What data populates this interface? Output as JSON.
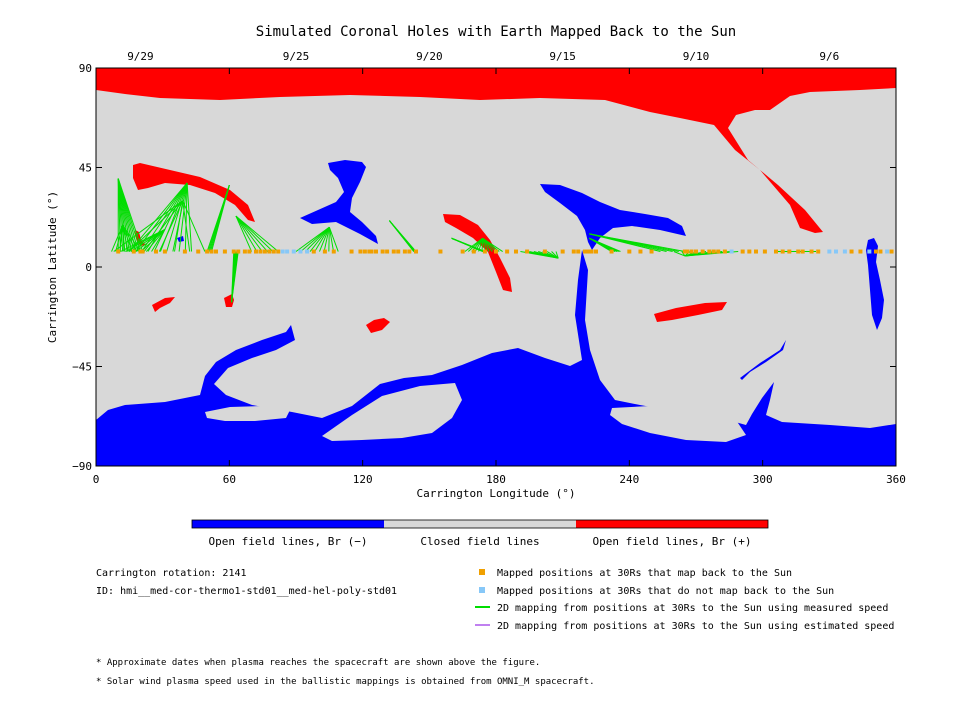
{
  "chart_data": {
    "type": "map",
    "title": "Simulated Coronal Holes with Earth Mapped Back to the Sun",
    "xlabel": "Carrington Longitude (°)",
    "ylabel": "Carrington Latitude (°)",
    "xlim": [
      0,
      360
    ],
    "ylim": [
      -90,
      90
    ],
    "x_ticks": [
      0,
      60,
      120,
      180,
      240,
      300,
      360
    ],
    "y_ticks": [
      90,
      45,
      0,
      -45,
      -90
    ],
    "y_tick_labels": [
      "90",
      "45",
      "0",
      "−45",
      "−90"
    ],
    "top_axis_dates": [
      {
        "label": "9/29",
        "lon": 20
      },
      {
        "label": "9/25",
        "lon": 90
      },
      {
        "label": "9/20",
        "lon": 150
      },
      {
        "label": "9/15",
        "lon": 210
      },
      {
        "label": "9/10",
        "lon": 270
      },
      {
        "label": "9/6",
        "lon": 330
      }
    ],
    "colors": {
      "open_negative": "#0000ff",
      "closed": "#d8d8d8",
      "open_positive": "#ff0000",
      "mapped": "#f0a000",
      "unmapped": "#87c8f8",
      "measured_speed_line": "#00dd00",
      "estimated_speed_line": "#c080f0"
    },
    "colorbar": {
      "labels": [
        "Open field lines, Br (−)",
        "Closed field lines",
        "Open field lines, Br (+)"
      ]
    },
    "earth_latitude": 7,
    "mapped_longitudes": [
      10,
      17,
      20,
      21,
      27,
      31,
      40,
      46,
      50,
      52,
      54,
      58,
      62,
      64,
      67,
      69,
      72,
      74,
      76,
      78,
      80,
      82,
      98,
      103,
      107,
      115,
      119,
      121,
      123,
      124,
      126,
      129,
      131,
      134,
      136,
      139,
      141,
      144,
      155,
      165,
      170,
      175,
      180,
      185,
      189,
      194,
      202,
      210,
      215,
      217,
      220,
      221,
      222,
      223,
      225,
      232,
      240,
      245,
      250,
      265,
      266,
      268,
      270,
      273,
      276,
      278,
      280,
      283,
      291,
      294,
      297,
      301,
      306,
      309,
      312,
      316,
      318,
      322,
      325,
      340,
      344,
      351,
      353,
      358
    ],
    "unmapped_longitudes": [
      84,
      86,
      89,
      92,
      95,
      286,
      330,
      333,
      337,
      348,
      356
    ],
    "field_line_mappings": [
      [
        10,
        40,
        10,
        21,
        9,
        12
      ],
      [
        12,
        19,
        7,
        20,
        9,
        8
      ],
      [
        31,
        17,
        11,
        25,
        9,
        7
      ],
      [
        41,
        38,
        15,
        43,
        9,
        11
      ],
      [
        39,
        30,
        8,
        49,
        9,
        7
      ],
      [
        60,
        37,
        50,
        52,
        9,
        5
      ],
      [
        61,
        -16,
        64,
        62,
        9,
        8
      ],
      [
        63,
        23,
        82,
        70,
        6,
        6
      ],
      [
        105,
        18,
        90,
        109,
        9,
        10
      ],
      [
        132,
        21,
        144,
        143,
        9,
        7
      ],
      [
        160,
        13,
        175,
        174,
        9,
        8
      ],
      [
        174,
        13,
        166,
        183,
        9,
        12
      ],
      [
        208,
        4,
        191,
        207,
        10,
        9
      ],
      [
        222,
        13,
        232,
        236,
        12,
        6
      ],
      [
        222,
        15,
        254,
        265,
        10,
        5
      ],
      [
        265,
        5,
        260,
        289,
        9,
        9
      ],
      [
        307,
        7,
        311,
        324,
        12,
        7
      ]
    ],
    "legend": [
      {
        "marker": "square",
        "color": "#f0a000",
        "label": "Mapped positions at 30Rs that map back to the Sun"
      },
      {
        "marker": "square",
        "color": "#87c8f8",
        "label": "Mapped positions at 30Rs that do not map back to the Sun"
      },
      {
        "marker": "line",
        "color": "#00dd00",
        "label": "2D mapping from positions at 30Rs to the Sun using measured speed"
      },
      {
        "marker": "line",
        "color": "#c080f0",
        "label": "2D mapping from positions at 30Rs to the Sun using estimated speed"
      }
    ]
  },
  "info": {
    "rotation": "Carrington rotation: 2141",
    "model_id": "ID: hmi__med-cor-thermo1-std01__med-hel-poly-std01"
  },
  "footnotes": [
    "* Approximate dates when plasma reaches the spacecraft are shown above the figure.",
    "* Solar wind plasma speed used in the ballistic mappings is obtained from OMNI_M spacecraft."
  ]
}
